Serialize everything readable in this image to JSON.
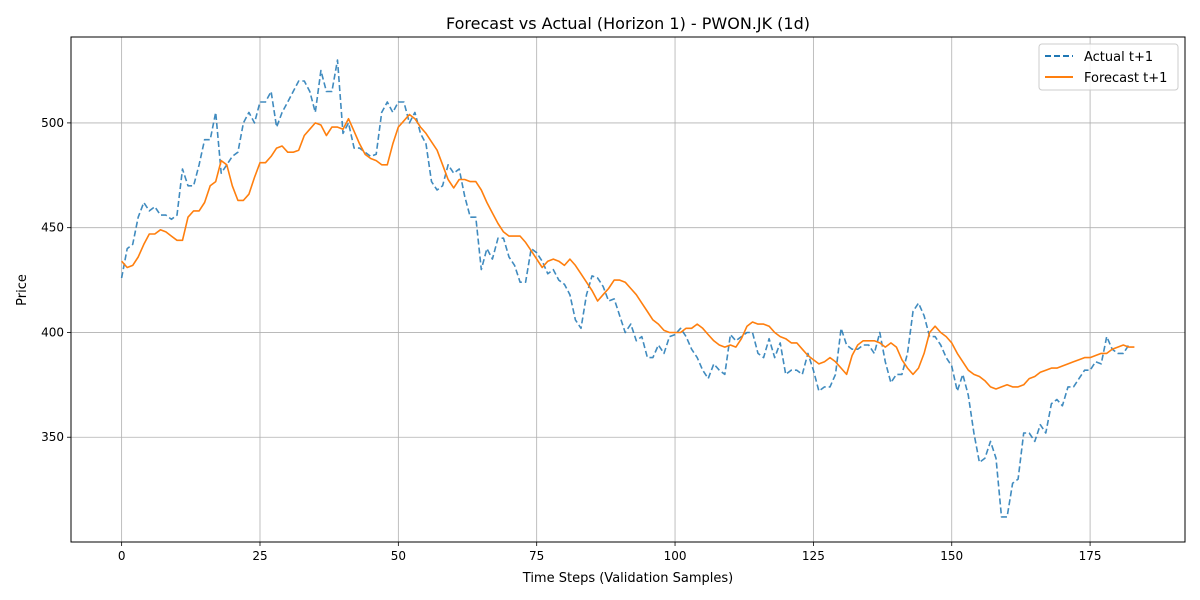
{
  "chart_data": {
    "type": "line",
    "title": "Forecast vs Actual (Horizon 1) - PWON.JK (1d)",
    "xlabel": "Time Steps (Validation Samples)",
    "ylabel": "Price",
    "xlim": [
      -9.15,
      192.15
    ],
    "ylim": [
      300,
      541
    ],
    "xticks": [
      0,
      25,
      50,
      75,
      100,
      125,
      150,
      175
    ],
    "yticks": [
      350,
      400,
      450,
      500
    ],
    "xtick_labels": [
      "0",
      "25",
      "50",
      "75",
      "100",
      "125",
      "150",
      "175"
    ],
    "ytick_labels": [
      "350",
      "400",
      "450",
      "500"
    ],
    "grid": true,
    "legend_position": "top-right",
    "series": [
      {
        "name": "Actual t+1",
        "color": "#1f77b4",
        "style": "dashed",
        "values": [
          426,
          440,
          442,
          455,
          462,
          458,
          460,
          456,
          456,
          454,
          456,
          478,
          470,
          470,
          480,
          492,
          492,
          505,
          476,
          480,
          484,
          486,
          500,
          505,
          500,
          510,
          510,
          515,
          498,
          505,
          510,
          515,
          520,
          520,
          515,
          505,
          525,
          515,
          515,
          530,
          495,
          500,
          488,
          488,
          486,
          484,
          485,
          505,
          510,
          505,
          510,
          510,
          500,
          505,
          495,
          490,
          472,
          468,
          470,
          480,
          476,
          478,
          465,
          455,
          455,
          430,
          440,
          435,
          445,
          445,
          436,
          432,
          424,
          424,
          440,
          438,
          434,
          428,
          430,
          425,
          423,
          418,
          406,
          402,
          418,
          427,
          426,
          422,
          415,
          416,
          408,
          400,
          404,
          396,
          398,
          388,
          388,
          394,
          390,
          398,
          399,
          402,
          398,
          392,
          388,
          382,
          378,
          385,
          382,
          380,
          399,
          396,
          398,
          400,
          400,
          390,
          388,
          397,
          388,
          395,
          380,
          382,
          382,
          380,
          390,
          382,
          372,
          374,
          374,
          380,
          402,
          394,
          392,
          392,
          394,
          394,
          390,
          400,
          386,
          376,
          380,
          380,
          390,
          410,
          414,
          408,
          398,
          398,
          394,
          388,
          384,
          372,
          380,
          370,
          352,
          338,
          340,
          348,
          340,
          312,
          312,
          328,
          330,
          352,
          352,
          348,
          356,
          352,
          366,
          368,
          365,
          374,
          374,
          378,
          382,
          382,
          386,
          385,
          398,
          392,
          390,
          390,
          394
        ]
      },
      {
        "name": "Forecast t+1",
        "color": "#ff7f0e",
        "style": "solid",
        "values": [
          434,
          431,
          432,
          436,
          442,
          447,
          447,
          449,
          448,
          446,
          444,
          444,
          455,
          458,
          458,
          462,
          470,
          472,
          482,
          480,
          470,
          463,
          463,
          466,
          474,
          481,
          481,
          484,
          488,
          489,
          486,
          486,
          487,
          494,
          497,
          500,
          499,
          494,
          498,
          498,
          497,
          502,
          496,
          490,
          485,
          483,
          482,
          480,
          480,
          490,
          498,
          501,
          504,
          502,
          498,
          495,
          491,
          487,
          480,
          473,
          469,
          473,
          473,
          472,
          472,
          468,
          462,
          457,
          452,
          448,
          446,
          446,
          446,
          443,
          439,
          435,
          431,
          434,
          435,
          434,
          432,
          435,
          432,
          428,
          424,
          420,
          415,
          418,
          421,
          425,
          425,
          424,
          421,
          418,
          414,
          410,
          406,
          404,
          401,
          400,
          400,
          400,
          402,
          402,
          404,
          402,
          399,
          396,
          394,
          393,
          394,
          393,
          397,
          403,
          405,
          404,
          404,
          403,
          400,
          398,
          397,
          395,
          395,
          392,
          389,
          387,
          385,
          386,
          388,
          386,
          383,
          380,
          389,
          394,
          396,
          396,
          396,
          395,
          393,
          395,
          393,
          387,
          383,
          380,
          383,
          390,
          400,
          403,
          400,
          398,
          395,
          390,
          386,
          382,
          380,
          379,
          377,
          374,
          373,
          374,
          375,
          374,
          374,
          375,
          378,
          379,
          381,
          382,
          383,
          383,
          384,
          385,
          386,
          387,
          388,
          388,
          389,
          390,
          390,
          392,
          393,
          394,
          393,
          393
        ]
      }
    ]
  }
}
